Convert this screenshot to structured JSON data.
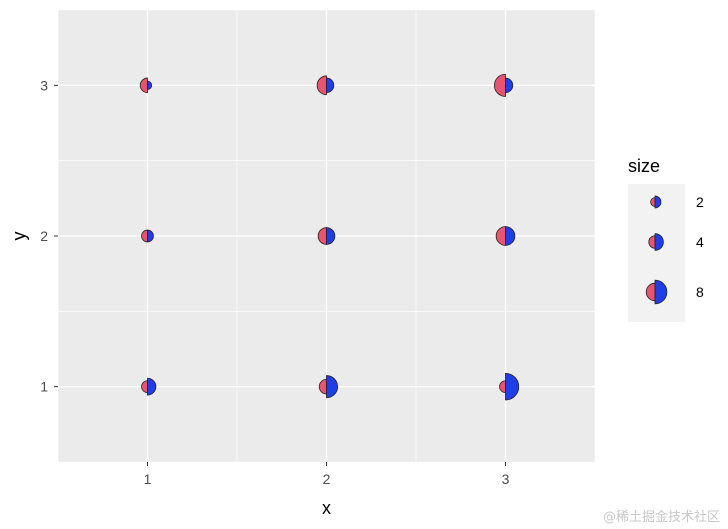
{
  "chart_data": {
    "type": "scatter",
    "glyph": "split-circle",
    "xlabel": "x",
    "ylabel": "y",
    "xlim": [
      0.5,
      3.5
    ],
    "ylim": [
      0.5,
      3.5
    ],
    "x_ticks": [
      1,
      2,
      3
    ],
    "y_ticks": [
      1,
      2,
      3
    ],
    "grid": true,
    "legend": {
      "title": "size",
      "position": "right",
      "entries": [
        {
          "label": "2",
          "value": 2
        },
        {
          "label": "4",
          "value": 4
        },
        {
          "label": "8",
          "value": 8
        }
      ]
    },
    "colors": {
      "left": "#e85470",
      "right": "#1f3de8",
      "panel": "#ebebeb",
      "grid": "#ffffff"
    },
    "points": [
      {
        "x": 1,
        "y": 1,
        "left": 2,
        "right": 4
      },
      {
        "x": 1,
        "y": 2,
        "left": 2,
        "right": 2
      },
      {
        "x": 1,
        "y": 3,
        "left": 3,
        "right": 1
      },
      {
        "x": 2,
        "y": 1,
        "left": 3,
        "right": 7
      },
      {
        "x": 2,
        "y": 2,
        "left": 4,
        "right": 4
      },
      {
        "x": 2,
        "y": 3,
        "left": 5,
        "right": 3
      },
      {
        "x": 3,
        "y": 1,
        "left": 2,
        "right": 10
      },
      {
        "x": 3,
        "y": 2,
        "left": 5,
        "right": 5
      },
      {
        "x": 3,
        "y": 3,
        "left": 7,
        "right": 3
      }
    ]
  },
  "watermark": "@稀土掘金技术社区"
}
